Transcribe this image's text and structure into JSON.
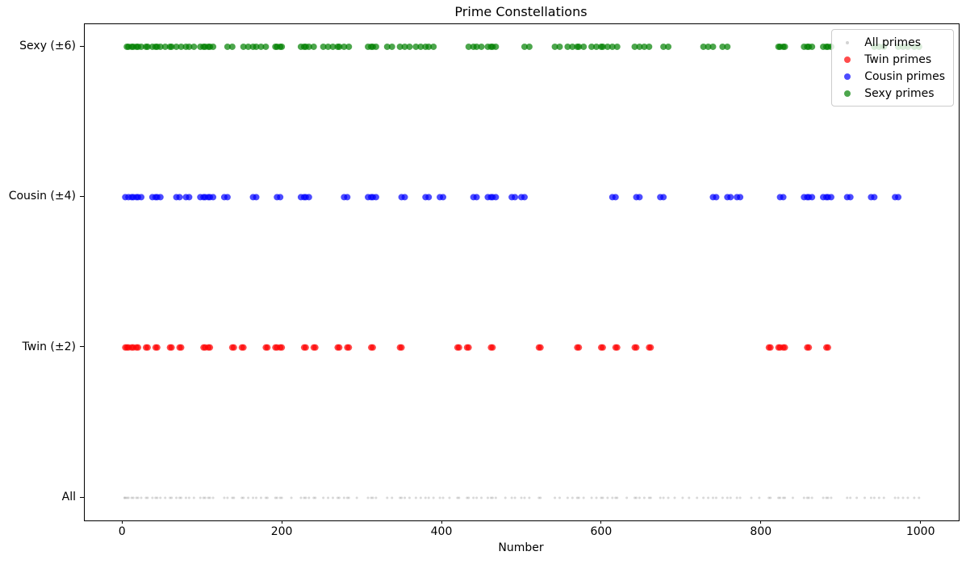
{
  "chart_data": {
    "type": "scatter",
    "title": "Prime Constellations",
    "xlabel": "Number",
    "ylabel": "",
    "xlim": [
      -47.75,
      1046.75
    ],
    "ylim": [
      -0.15,
      3.15
    ],
    "xticks": [
      0,
      200,
      400,
      600,
      800,
      1000
    ],
    "grid": false,
    "legend_position": "upper right",
    "legend": [
      {
        "label": "All primes",
        "color": "#808080",
        "alpha": 0.35,
        "size": 4
      },
      {
        "label": "Twin primes",
        "color": "#ff0000",
        "alpha": 0.7,
        "size": 8
      },
      {
        "label": "Cousin primes",
        "color": "#0000ff",
        "alpha": 0.7,
        "size": 8
      },
      {
        "label": "Sexy primes",
        "color": "#008000",
        "alpha": 0.7,
        "size": 8
      }
    ],
    "rows": [
      {
        "id": "all",
        "label": "All",
        "y": 0,
        "color": "#808080",
        "alpha": 0.3,
        "size": 3,
        "values": [
          2,
          3,
          5,
          7,
          11,
          13,
          17,
          19,
          23,
          29,
          31,
          37,
          41,
          43,
          47,
          53,
          59,
          61,
          67,
          71,
          73,
          79,
          83,
          89,
          97,
          101,
          103,
          107,
          109,
          113,
          127,
          131,
          137,
          139,
          149,
          151,
          157,
          163,
          167,
          173,
          179,
          181,
          191,
          193,
          197,
          199,
          211,
          223,
          227,
          229,
          233,
          239,
          241,
          251,
          257,
          263,
          269,
          271,
          277,
          281,
          283,
          293,
          307,
          311,
          313,
          317,
          331,
          337,
          347,
          349,
          353,
          359,
          367,
          373,
          379,
          383,
          389,
          397,
          401,
          409,
          419,
          421,
          431,
          433,
          439,
          443,
          449,
          457,
          461,
          463,
          467,
          479,
          487,
          491,
          499,
          503,
          509,
          521,
          523,
          541,
          547,
          557,
          563,
          569,
          571,
          577,
          587,
          593,
          599,
          601,
          607,
          613,
          617,
          619,
          631,
          641,
          643,
          647,
          653,
          659,
          661,
          673,
          677,
          683,
          691,
          701,
          709,
          719,
          727,
          733,
          739,
          743,
          751,
          757,
          761,
          769,
          773,
          787,
          797,
          809,
          811,
          821,
          823,
          827,
          829,
          839,
          853,
          857,
          859,
          863,
          877,
          881,
          883,
          887,
          907,
          911,
          919,
          929,
          937,
          941,
          947,
          953,
          967,
          971,
          977,
          983,
          991,
          997
        ]
      },
      {
        "id": "twin",
        "label": "Twin (±2)",
        "y": 1,
        "color": "#ff0000",
        "alpha": 0.7,
        "size": 8,
        "values": [
          3,
          5,
          7,
          11,
          13,
          17,
          19,
          29,
          31,
          41,
          43,
          59,
          61,
          71,
          73,
          101,
          103,
          107,
          109,
          137,
          139,
          149,
          151,
          179,
          181,
          191,
          193,
          197,
          199,
          227,
          229,
          239,
          241,
          269,
          271,
          281,
          283,
          311,
          313,
          347,
          349,
          419,
          421,
          431,
          433,
          461,
          463,
          521,
          523,
          569,
          571,
          599,
          601,
          617,
          619,
          641,
          643,
          659,
          661,
          809,
          811,
          821,
          823,
          827,
          829,
          857,
          859,
          881,
          883
        ]
      },
      {
        "id": "cousin",
        "label": "Cousin (±4)",
        "y": 2,
        "color": "#0000ff",
        "alpha": 0.7,
        "size": 8,
        "values": [
          3,
          7,
          11,
          13,
          17,
          19,
          23,
          37,
          41,
          43,
          47,
          67,
          71,
          79,
          83,
          97,
          101,
          103,
          107,
          109,
          113,
          127,
          131,
          163,
          167,
          193,
          197,
          223,
          227,
          229,
          233,
          277,
          281,
          307,
          311,
          313,
          317,
          349,
          353,
          379,
          383,
          397,
          401,
          439,
          443,
          457,
          461,
          463,
          467,
          487,
          491,
          499,
          503,
          613,
          617,
          643,
          647,
          673,
          677,
          739,
          743,
          757,
          761,
          769,
          773,
          823,
          827,
          853,
          857,
          859,
          863,
          877,
          881,
          883,
          887,
          907,
          911,
          937,
          941,
          967,
          971
        ]
      },
      {
        "id": "sexy",
        "label": "Sexy (±6)",
        "y": 3,
        "color": "#008000",
        "alpha": 0.7,
        "size": 8,
        "values": [
          5,
          7,
          11,
          13,
          17,
          19,
          23,
          29,
          31,
          37,
          41,
          43,
          47,
          53,
          59,
          61,
          67,
          73,
          79,
          83,
          89,
          97,
          101,
          103,
          107,
          109,
          113,
          131,
          137,
          151,
          157,
          163,
          167,
          173,
          179,
          191,
          193,
          197,
          199,
          223,
          227,
          229,
          233,
          239,
          251,
          257,
          263,
          269,
          271,
          277,
          283,
          307,
          311,
          313,
          317,
          331,
          337,
          347,
          353,
          359,
          367,
          373,
          379,
          383,
          389,
          433,
          439,
          443,
          449,
          457,
          461,
          463,
          467,
          503,
          509,
          541,
          547,
          557,
          563,
          569,
          571,
          577,
          587,
          593,
          599,
          601,
          607,
          613,
          619,
          641,
          647,
          653,
          659,
          677,
          683,
          727,
          733,
          739,
          751,
          757,
          821,
          823,
          827,
          829,
          853,
          857,
          859,
          863,
          877,
          881,
          883,
          887,
          941,
          947,
          953,
          971,
          977,
          983,
          991,
          997
        ]
      }
    ]
  }
}
